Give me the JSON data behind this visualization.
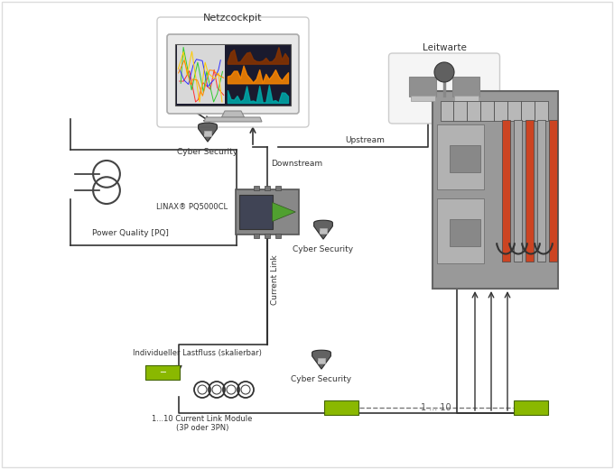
{
  "bg_color": "#ffffff",
  "border_color": "#cccccc",
  "title": "Netzcockpit",
  "leitwarte_label": "Leitwarte",
  "linax_label": "LINAX® PQ5000CL",
  "cyber_security_label": "Cyber Security",
  "upstream_label": "Upstream",
  "downstream_label": "Downstream",
  "current_link_label": "Current Link",
  "power_quality_label": "Power Quality [PQ]",
  "ind_lastfluss_label": "Individueller Lastfluss (skalierbar)",
  "current_link_module_label": "1...10 Current Link Module\n(3P oder 3PN)",
  "one_to_ten_label": "1 ... 10",
  "gray_box_color": "#a0a0a0",
  "light_gray": "#d0d0d0",
  "dark_gray": "#707070",
  "orange_red": "#cc4422",
  "green_color": "#50a030",
  "yellow_green": "#8ab800",
  "monitor_bg": "#1a1a2e",
  "line_color": "#333333",
  "shield_color": "#444444",
  "border_outline": "#dddddd"
}
